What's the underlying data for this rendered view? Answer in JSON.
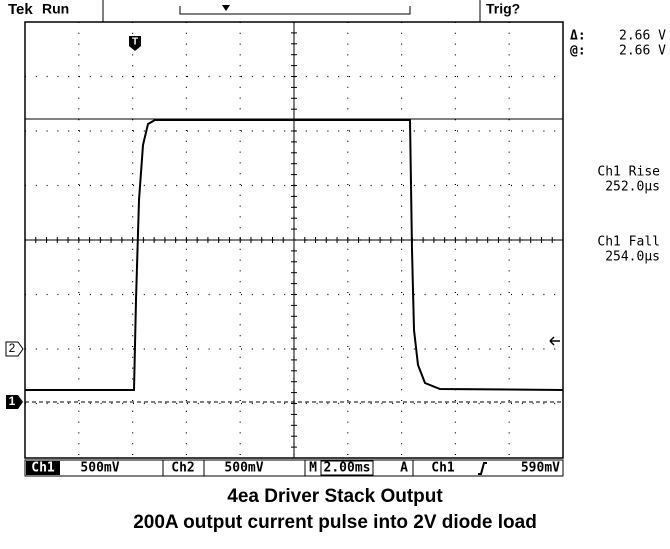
{
  "header": {
    "brand": "Tek",
    "status": "Run",
    "trigger": "Trig?"
  },
  "readouts": {
    "delta_label": "Δ:",
    "delta_value": "2.66 V",
    "at_label": "@:",
    "at_value": "2.66 V",
    "rise_label": "Ch1 Rise",
    "rise_value": "252.0µs",
    "fall_label": "Ch1 Fall",
    "fall_value": "254.0µs"
  },
  "markers": {
    "trigger_position": "T",
    "ch2": "2",
    "ch1": "1"
  },
  "status_bar": {
    "ch1_label": "Ch1",
    "ch1_scale": "500mV",
    "ch2_label": "Ch2",
    "ch2_scale": "500mV",
    "time_label": "M",
    "time_scale": "2.00ms",
    "trigger_mode": "A",
    "trigger_source": "Ch1",
    "trigger_level": "590mV"
  },
  "caption": {
    "line1": "4ea Driver Stack Output",
    "line2": "200A output current pulse into 2V diode load"
  }
}
